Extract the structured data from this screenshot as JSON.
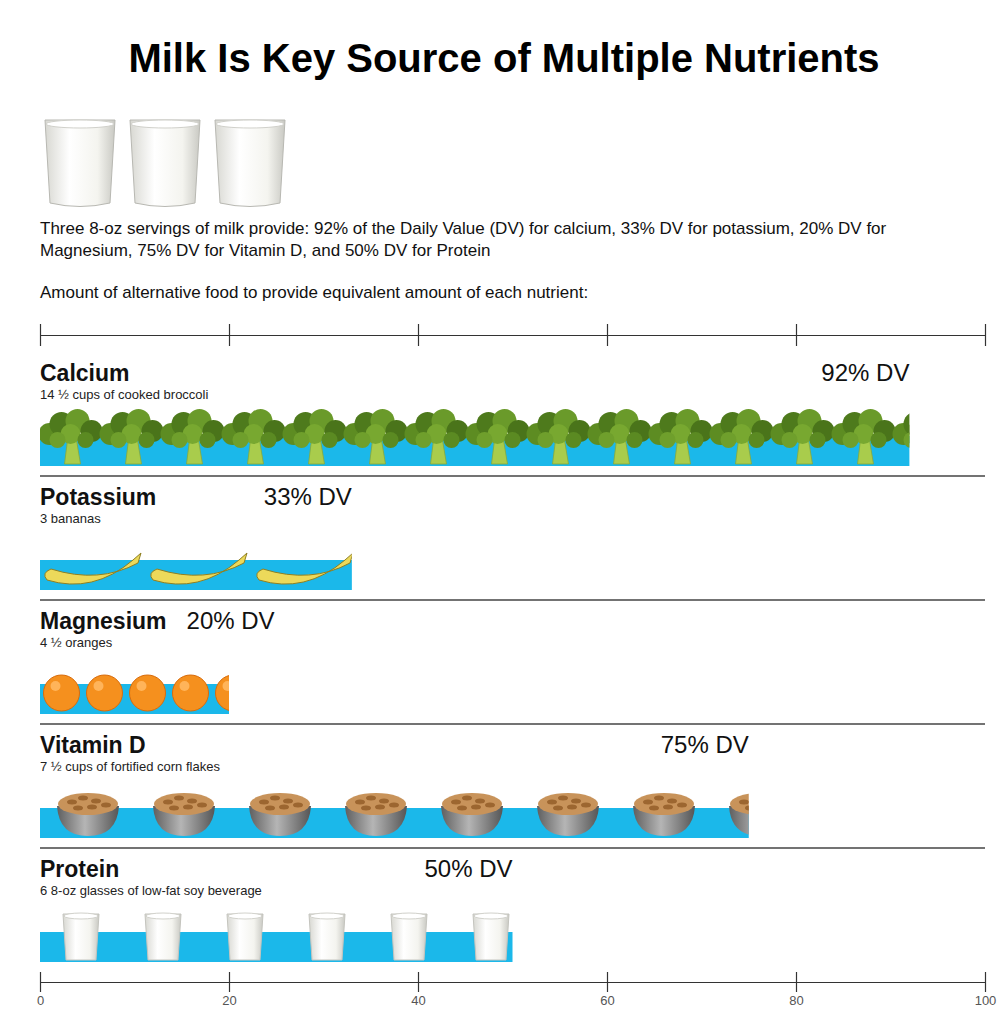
{
  "chart_data": {
    "type": "bar",
    "orientation": "horizontal",
    "title": "Milk Is Key Source of Multiple Nutrients",
    "subtitle": "Three 8-oz servings of milk provide: 92% of the Daily Value (DV) for calcium, 33% DV for potassium, 20% DV for Magnesium, 75% DV for Vitamin D, and 50% DV for Protein",
    "annotations": [
      "Amount of alternative food to provide equivalent amount of each nutrient:"
    ],
    "categories": [
      "Calcium",
      "Potassium",
      "Magnesium",
      "Vitamin D",
      "Protein"
    ],
    "notes": [
      "14 ½ cups of cooked broccoli",
      "3 bananas",
      "4 ½ oranges",
      "7 ½ cups of fortified corn flakes",
      "6 8-oz glasses of low-fat soy beverage"
    ],
    "values": [
      92,
      33,
      20,
      75,
      50
    ],
    "value_labels": [
      "92% DV",
      "33% DV",
      "20% DV",
      "75% DV",
      "50% DV"
    ],
    "data_labels": true,
    "color": "#1bb8ea",
    "xlim": [
      0,
      100
    ],
    "xticks": [
      0,
      20,
      40,
      60,
      80,
      100
    ],
    "tick_labels": "x"
  }
}
